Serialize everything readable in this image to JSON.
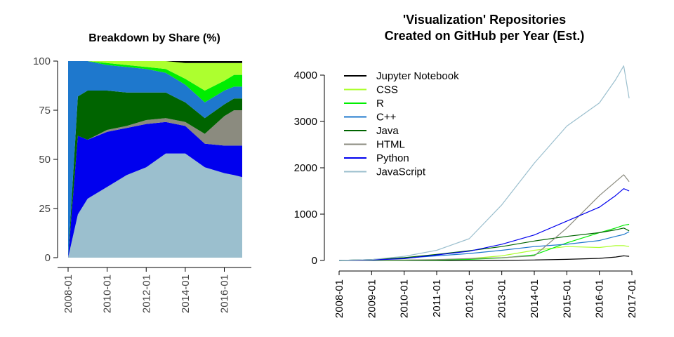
{
  "chart_data": [
    {
      "type": "area",
      "title": "Breakdown by Share (%)",
      "ylim": [
        0,
        100
      ],
      "y_ticks": [
        "0",
        "25",
        "50",
        "75",
        "100"
      ],
      "x_ticks": [
        "2008-01",
        "2010-01",
        "2012-01",
        "2014-01",
        "2016-01"
      ],
      "x": [
        "2008-01",
        "2008-07",
        "2009-01",
        "2010-01",
        "2011-01",
        "2012-01",
        "2013-01",
        "2014-01",
        "2015-01",
        "2016-01",
        "2016-07",
        "2016-12"
      ],
      "series": [
        {
          "name": "JavaScript",
          "color": "#9bbfce",
          "values": [
            0,
            22,
            30,
            36,
            42,
            46,
            53,
            53,
            46,
            43,
            42,
            41
          ]
        },
        {
          "name": "Python",
          "color": "#0000ee",
          "values": [
            0,
            40,
            30,
            28,
            24,
            22,
            16,
            14,
            12,
            14,
            15,
            16
          ]
        },
        {
          "name": "HTML",
          "color": "#8b8b7f",
          "values": [
            0,
            0,
            0,
            1,
            1,
            2,
            2,
            2,
            5,
            15,
            18,
            18
          ]
        },
        {
          "name": "Java",
          "color": "#006400",
          "values": [
            0,
            20,
            25,
            20,
            17,
            14,
            13,
            10,
            8,
            6,
            6,
            6
          ]
        },
        {
          "name": "C++",
          "color": "#1e78cd",
          "values": [
            100,
            18,
            15,
            13,
            13,
            12,
            10,
            9,
            8,
            7,
            6,
            6
          ]
        },
        {
          "name": "R",
          "color": "#00ee00",
          "values": [
            0,
            0,
            0,
            1,
            1,
            1,
            2,
            3,
            6,
            5,
            6,
            6
          ]
        },
        {
          "name": "CSS",
          "color": "#adff2f",
          "values": [
            0,
            0,
            0,
            1,
            2,
            3,
            4,
            8,
            14,
            9,
            6,
            6
          ]
        },
        {
          "name": "Jupyter Notebook",
          "color": "#000000",
          "values": [
            0,
            0,
            0,
            0,
            0,
            0,
            0,
            1,
            1,
            1,
            1,
            1
          ]
        }
      ]
    },
    {
      "type": "line",
      "title": [
        "'Visualization' Repositories",
        "Created on GitHub per Year (Est.)"
      ],
      "ylim": [
        0,
        4300
      ],
      "y_ticks": [
        "0",
        "1000",
        "2000",
        "3000",
        "4000"
      ],
      "x_ticks": [
        "2008-01",
        "2009-01",
        "2010-01",
        "2011-01",
        "2012-01",
        "2013-01",
        "2014-01",
        "2015-01",
        "2016-01",
        "2017-01"
      ],
      "x": [
        "2008-01",
        "2009-01",
        "2010-01",
        "2011-01",
        "2012-01",
        "2013-01",
        "2014-01",
        "2015-01",
        "2016-01",
        "2016-07",
        "2016-10",
        "2016-12"
      ],
      "legend_position": "top-left",
      "series": [
        {
          "name": "Jupyter Notebook",
          "color": "#000000",
          "values": [
            0,
            0,
            0,
            0,
            0,
            2,
            10,
            25,
            45,
            75,
            100,
            90
          ]
        },
        {
          "name": "CSS",
          "color": "#adff2f",
          "values": [
            0,
            3,
            8,
            15,
            40,
            100,
            220,
            300,
            280,
            320,
            320,
            300
          ]
        },
        {
          "name": "R",
          "color": "#00ee00",
          "values": [
            0,
            2,
            5,
            10,
            25,
            55,
            120,
            380,
            600,
            700,
            760,
            780
          ]
        },
        {
          "name": "C++",
          "color": "#1e78cd",
          "values": [
            0,
            20,
            50,
            100,
            150,
            220,
            300,
            350,
            430,
            520,
            560,
            620
          ]
        },
        {
          "name": "Java",
          "color": "#006400",
          "values": [
            0,
            20,
            60,
            130,
            210,
            300,
            420,
            520,
            600,
            660,
            700,
            640
          ]
        },
        {
          "name": "HTML",
          "color": "#8b8b7f",
          "values": [
            0,
            5,
            10,
            20,
            40,
            60,
            100,
            700,
            1400,
            1700,
            1850,
            1700
          ]
        },
        {
          "name": "Python",
          "color": "#0000ee",
          "values": [
            0,
            10,
            40,
            120,
            200,
            350,
            550,
            850,
            1150,
            1400,
            1550,
            1500
          ]
        },
        {
          "name": "JavaScript",
          "color": "#9bbfce",
          "values": [
            0,
            20,
            90,
            220,
            470,
            1200,
            2100,
            2900,
            3400,
            3900,
            4200,
            3500
          ]
        }
      ],
      "legend_order": [
        "Jupyter Notebook",
        "CSS",
        "R",
        "C++",
        "Java",
        "HTML",
        "Python",
        "JavaScript"
      ]
    }
  ]
}
